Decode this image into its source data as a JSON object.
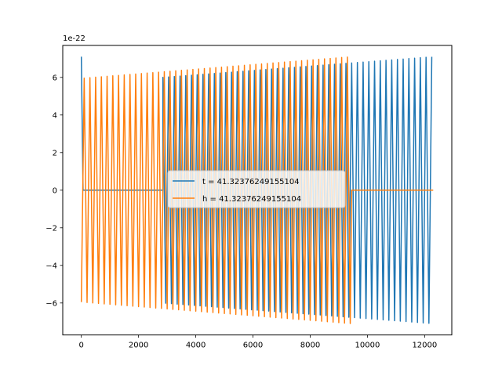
{
  "chart_data": {
    "type": "line",
    "title": "",
    "xlabel": "",
    "ylabel": "",
    "offset_text": "1e-22",
    "xlim": [
      -650,
      12950
    ],
    "ylim": [
      -7.7,
      7.7
    ],
    "xticks": [
      0,
      2000,
      4000,
      6000,
      8000,
      10000,
      12000
    ],
    "xtick_labels": [
      "0",
      "2000",
      "4000",
      "6000",
      "8000",
      "10000",
      "12000"
    ],
    "yticks": [
      -6,
      -4,
      -2,
      0,
      2,
      4,
      6
    ],
    "ytick_labels": [
      "−6",
      "−4",
      "−2",
      "0",
      "2",
      "4",
      "6"
    ],
    "grid": false,
    "legend_placement": "center",
    "series": [
      {
        "name": "t = 41.32376249155104",
        "color": "#1f77b4",
        "description": "oscillation; near 7.1 at x=0, flat 0 until ~2850, then oscillates with amplitude growing from ~6.0 to ~7.1 until ~12300",
        "segments": [
          {
            "x_start": 0,
            "x_end": 60,
            "kind": "spike",
            "values": [
              7.1,
              0
            ]
          },
          {
            "x_start": 60,
            "x_end": 2850,
            "kind": "flat",
            "value": 0
          },
          {
            "x_start": 2850,
            "x_end": 12300,
            "kind": "oscillation",
            "period": 200,
            "amp_start": 6.0,
            "amp_end": 7.1,
            "phase": "peak"
          }
        ]
      },
      {
        "name": "h = 41.32376249155104",
        "color": "#ff7f0e",
        "description": "oscillation from 0 to ~9450 with amplitude growing from ~6.0 to ~7.1, then flat 0 until ~12300",
        "segments": [
          {
            "x_start": 0,
            "x_end": 9450,
            "kind": "oscillation",
            "period": 200,
            "amp_start": 5.95,
            "amp_end": 7.1,
            "phase": "trough"
          },
          {
            "x_start": 9450,
            "x_end": 12300,
            "kind": "flat",
            "value": 0
          }
        ]
      }
    ]
  }
}
